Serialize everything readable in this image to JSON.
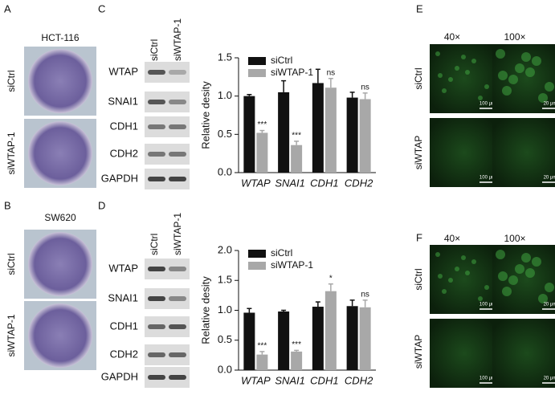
{
  "panels": {
    "A": {
      "label": "A",
      "title": "HCT-116",
      "rows": [
        "siCtrl",
        "siWTAP-1"
      ]
    },
    "B": {
      "label": "B",
      "title": "SW620",
      "rows": [
        "siCtrl",
        "siWTAP-1"
      ]
    },
    "C": {
      "label": "C",
      "lanes": [
        "siCtrl",
        "siWTAP-1"
      ],
      "proteins": [
        "WTAP",
        "SNAI1",
        "CDH1",
        "CDH2",
        "GAPDH"
      ]
    },
    "D": {
      "label": "D",
      "lanes": [
        "siCtrl",
        "siWTAP-1"
      ],
      "proteins": [
        "WTAP",
        "SNAI1",
        "CDH1",
        "CDH2",
        "GAPDH"
      ]
    },
    "E": {
      "label": "E",
      "columns": [
        "40×",
        "100×"
      ],
      "rows": [
        "siCtrl",
        "siWTAP"
      ],
      "scale_bars": [
        "100 μm",
        "20 μm"
      ]
    },
    "F": {
      "label": "F",
      "columns": [
        "40×",
        "100×"
      ],
      "rows": [
        "siCtrl",
        "siWTAP"
      ],
      "scale_bars": [
        "100 μm",
        "20 μm"
      ]
    }
  },
  "chart_data": [
    {
      "type": "bar",
      "y_label": "Relative desity",
      "categories": [
        "WTAP",
        "SNAI1",
        "CDH1",
        "CDH2"
      ],
      "series": [
        {
          "name": "siCtrl",
          "color": "#111111",
          "values": [
            1.0,
            1.05,
            1.17,
            0.98
          ],
          "errors": [
            0.02,
            0.15,
            0.18,
            0.07
          ]
        },
        {
          "name": "siWTAP-1",
          "color": "#a8a8a8",
          "values": [
            0.52,
            0.36,
            1.11,
            0.96
          ],
          "errors": [
            0.03,
            0.05,
            0.12,
            0.08
          ],
          "annotations": [
            "***",
            "***",
            "ns",
            "ns"
          ]
        }
      ],
      "ylim": [
        0,
        1.5
      ],
      "yticks": [
        {
          "value": 0,
          "label": "0.0"
        },
        0.5,
        {
          "value": 1,
          "label": "1.0"
        },
        1.5
      ],
      "legend": "upper center"
    },
    {
      "type": "bar",
      "y_label": "Relative desity",
      "categories": [
        "WTAP",
        "SNAI1",
        "CDH1",
        "CDH2"
      ],
      "series": [
        {
          "name": "siCtrl",
          "color": "#111111",
          "values": [
            0.96,
            0.98,
            1.06,
            1.07
          ],
          "errors": [
            0.07,
            0.02,
            0.08,
            0.1
          ]
        },
        {
          "name": "siWTAP-1",
          "color": "#a8a8a8",
          "values": [
            0.26,
            0.31,
            1.32,
            1.05
          ],
          "errors": [
            0.05,
            0.02,
            0.12,
            0.12
          ],
          "annotations": [
            "***",
            "***",
            "*",
            "ns"
          ]
        }
      ],
      "ylim": [
        0,
        2
      ],
      "yticks": [
        {
          "value": 0,
          "label": "0.0"
        },
        0.5,
        {
          "value": 1,
          "label": "1.0"
        },
        1.5,
        {
          "value": 2,
          "label": "2.0"
        }
      ],
      "legend": "upper center"
    }
  ]
}
